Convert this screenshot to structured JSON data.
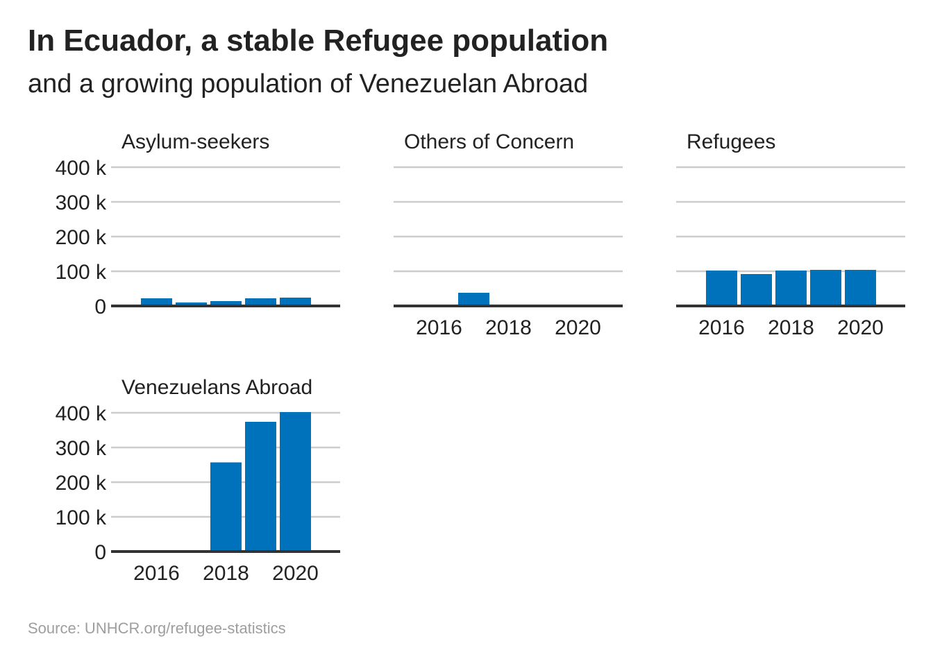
{
  "header": {
    "title": "In Ecuador, a stable Refugee population",
    "subtitle": "and a growing population of Venezuelan Abroad"
  },
  "footer": {
    "source": "Source: UNHCR.org/refugee-statistics"
  },
  "colors": {
    "bar": "#0072bc",
    "grid": "#cccccc",
    "baseline": "#333333"
  },
  "chart_data": [
    {
      "type": "bar",
      "title": "Asylum-seekers",
      "categories": [
        2016,
        2017,
        2018,
        2019,
        2020
      ],
      "values": [
        22000,
        10000,
        14000,
        22000,
        24000
      ],
      "ylim": [
        0,
        400000
      ],
      "yticks": [
        "0",
        "100 k",
        "200 k",
        "300 k",
        "400 k"
      ],
      "xticks": [],
      "grid": true
    },
    {
      "type": "bar",
      "title": "Others of Concern",
      "categories": [
        2016,
        2017,
        2018,
        2019,
        2020
      ],
      "values": [
        0,
        38000,
        0,
        0,
        0
      ],
      "ylim": [
        0,
        400000
      ],
      "yticks": [],
      "xticks": [
        "2016",
        "2018",
        "2020"
      ],
      "grid": true
    },
    {
      "type": "bar",
      "title": "Refugees",
      "categories": [
        2016,
        2017,
        2018,
        2019,
        2020
      ],
      "values": [
        102000,
        92000,
        102000,
        104000,
        104000
      ],
      "ylim": [
        0,
        400000
      ],
      "yticks": [],
      "xticks": [
        "2016",
        "2018",
        "2020"
      ],
      "grid": true
    },
    {
      "type": "bar",
      "title": "Venezuelans Abroad",
      "categories": [
        2016,
        2017,
        2018,
        2019,
        2020
      ],
      "values": [
        0,
        0,
        257000,
        374000,
        402000
      ],
      "ylim": [
        0,
        400000
      ],
      "yticks": [
        "0",
        "100 k",
        "200 k",
        "300 k",
        "400 k"
      ],
      "xticks": [
        "2016",
        "2018",
        "2020"
      ],
      "grid": true
    }
  ]
}
